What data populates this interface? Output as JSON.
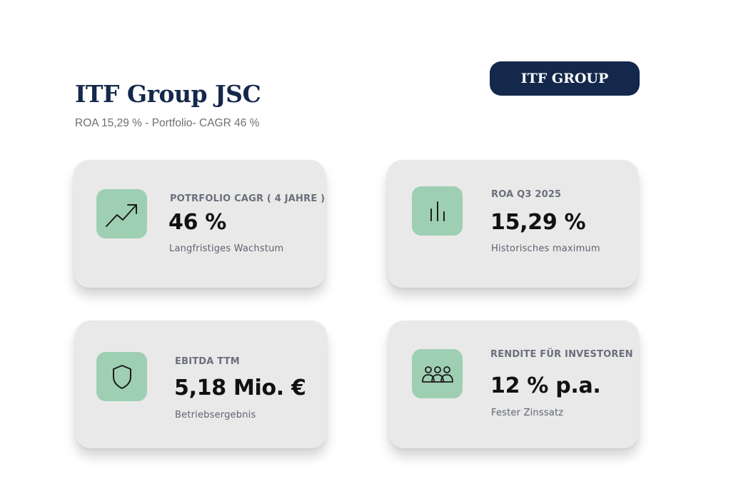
{
  "header": {
    "title": "ITF Group JSC",
    "subtitle": "ROA 15,29 % - Portfolio- CAGR 46 %",
    "brand_button": "ITF GROUP"
  },
  "colors": {
    "navy": "#14284b",
    "card_bg": "#e9e9e9",
    "icon_bg": "#9ecfb3"
  },
  "cards": [
    {
      "icon": "trending-up-icon",
      "label": "POTRFOLIO CAGR ( 4 JAHRE )",
      "value": "46 %",
      "description": "Langfristiges Wachstum"
    },
    {
      "icon": "bar-chart-icon",
      "label": "ROA Q3 2025",
      "value": "15,29 %",
      "description": "Historisches maximum"
    },
    {
      "icon": "shield-icon",
      "label": "EBITDA TTM",
      "value": "5,18 Mio. €",
      "description": "Betriebsergebnis"
    },
    {
      "icon": "users-icon",
      "label": "RENDITE FÜR INVESTOREN",
      "value": "12 % p.a.",
      "description": "Fester Zinssatz"
    }
  ]
}
